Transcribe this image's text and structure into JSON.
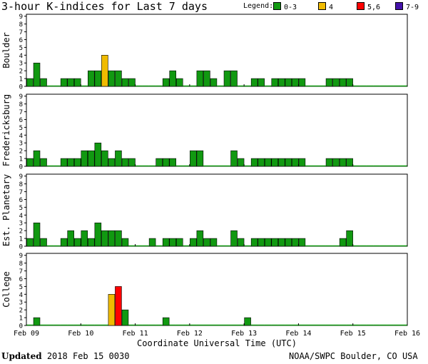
{
  "header": {
    "title": "3-hour K-indices for Last 7 days",
    "legend_label": "Legend:",
    "legend": [
      {
        "label": "0-3",
        "color": "#119911"
      },
      {
        "label": "4",
        "color": "#f0bb00"
      },
      {
        "label": "5,6",
        "color": "#ff0000"
      },
      {
        "label": "7-9",
        "color": "#4411aa"
      }
    ]
  },
  "chart_data": {
    "type": "bar",
    "title": "3-hour K-indices for Last 7 days",
    "xlabel": "Coordinate Universal Time (UTC)",
    "ylabel": "",
    "ylim": [
      0,
      9
    ],
    "yticks": [
      "0",
      "1",
      "2",
      "3",
      "4",
      "5",
      "6",
      "7",
      "8",
      "9"
    ],
    "x_ticks": [
      "Feb 09",
      "Feb 10",
      "Feb 11",
      "Feb 12",
      "Feb 13",
      "Feb 14",
      "Feb 15",
      "Feb 16"
    ],
    "bins_per_day": 8,
    "grid": false,
    "legend_position": "top-right",
    "color_scale": [
      {
        "range": "0-3",
        "color": "#119911"
      },
      {
        "range": "4",
        "color": "#f0bb00"
      },
      {
        "range": "5,6",
        "color": "#ff0000"
      },
      {
        "range": "7-9",
        "color": "#4411aa"
      }
    ],
    "series": [
      {
        "name": "Boulder",
        "values": [
          1,
          3,
          1,
          0,
          0,
          1,
          1,
          1,
          0,
          2,
          2,
          4,
          2,
          2,
          1,
          1,
          0,
          0,
          0,
          0,
          1,
          2,
          1,
          0,
          0,
          2,
          2,
          1,
          0,
          2,
          2,
          0,
          0,
          1,
          1,
          0,
          1,
          1,
          1,
          1,
          1,
          0,
          0,
          0,
          1,
          1,
          1,
          1,
          0,
          0,
          0,
          0,
          0,
          0,
          0,
          0
        ]
      },
      {
        "name": "Fredericksburg",
        "values": [
          1,
          2,
          1,
          0,
          0,
          1,
          1,
          1,
          2,
          2,
          3,
          2,
          1,
          2,
          1,
          1,
          0,
          0,
          0,
          1,
          1,
          1,
          0,
          0,
          2,
          2,
          0,
          0,
          0,
          0,
          2,
          1,
          0,
          1,
          1,
          1,
          1,
          1,
          1,
          1,
          1,
          0,
          0,
          0,
          1,
          1,
          1,
          1,
          0,
          0,
          0,
          0,
          0,
          0,
          0,
          0
        ]
      },
      {
        "name": "Est. Planetary",
        "values": [
          1,
          3,
          1,
          0,
          0,
          1,
          2,
          1,
          2,
          1,
          3,
          2,
          2,
          2,
          1,
          0,
          0,
          0,
          1,
          0,
          1,
          1,
          1,
          0,
          1,
          2,
          1,
          1,
          0,
          0,
          2,
          1,
          0,
          1,
          1,
          1,
          1,
          1,
          1,
          1,
          1,
          0,
          0,
          0,
          0,
          0,
          1,
          2,
          0,
          0,
          0,
          0,
          0,
          0,
          0,
          0
        ]
      },
      {
        "name": "College",
        "values": [
          0,
          1,
          0,
          0,
          0,
          0,
          0,
          0,
          0,
          0,
          0,
          0,
          4,
          5,
          2,
          0,
          0,
          0,
          0,
          0,
          1,
          0,
          0,
          0,
          0,
          0,
          0,
          0,
          0,
          0,
          0,
          0,
          1,
          0,
          0,
          0,
          0,
          0,
          0,
          0,
          0,
          0,
          0,
          0,
          0,
          0,
          0,
          0,
          0,
          0,
          0,
          0,
          0,
          0,
          0,
          0
        ]
      }
    ]
  },
  "footer": {
    "updated_label": "Updated",
    "updated_value": "2018 Feb 15 0030",
    "credit": "NOAA/SWPC Boulder, CO USA"
  }
}
